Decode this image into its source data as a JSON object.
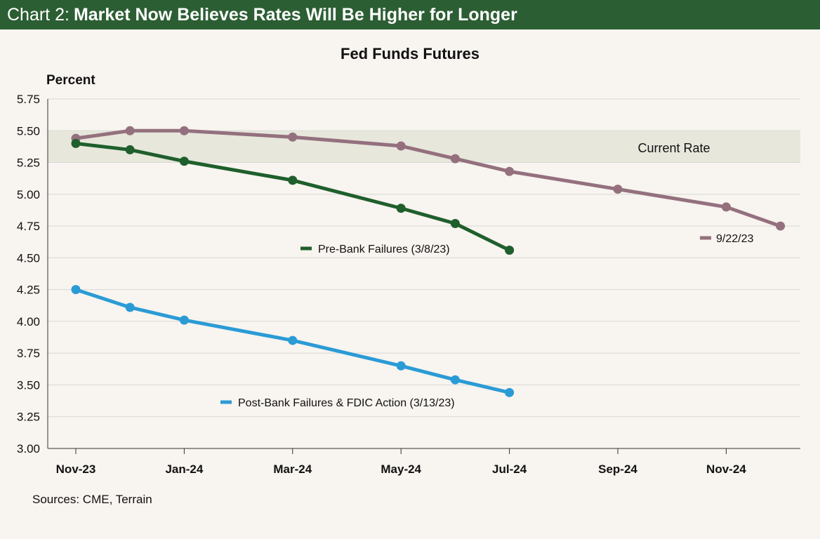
{
  "header": {
    "prefix": "Chart 2:",
    "title": "Market Now Believes Rates Will Be Higher for Longer"
  },
  "footer": {
    "source": "Sources: CME, Terrain"
  },
  "colors": {
    "header_bg": "#2c5e33",
    "pre": "#1f5f2c",
    "post": "#2b9bd6",
    "sep": "#94707e",
    "band": "#e7e7dc",
    "grid": "#d8d8d8",
    "background": "#f8f4ef"
  },
  "chart_data": {
    "type": "line",
    "title": "Fed Funds Futures",
    "ylabel": "Percent",
    "xlabel": "",
    "ylim": [
      3.0,
      5.75
    ],
    "yticks": [
      3.0,
      3.25,
      3.5,
      3.75,
      4.0,
      4.25,
      4.5,
      4.75,
      5.0,
      5.25,
      5.5,
      5.75
    ],
    "ytick_labels": [
      "3.00",
      "3.25",
      "3.50",
      "3.75",
      "4.00",
      "4.25",
      "4.50",
      "4.75",
      "5.00",
      "5.25",
      "5.50",
      "5.75"
    ],
    "xlim": [
      0,
      13.5
    ],
    "xticks": [
      0,
      2,
      4,
      6,
      8,
      10,
      12
    ],
    "xtick_labels": [
      "Nov-23",
      "Jan-24",
      "Mar-24",
      "May-24",
      "Jul-24",
      "Sep-24",
      "Nov-24"
    ],
    "grid": true,
    "band": {
      "label": "Current Rate",
      "from": 5.25,
      "to": 5.5
    },
    "series": [
      {
        "name": "9/22/23",
        "color": "#94707e",
        "x": [
          0,
          1,
          2,
          4,
          6,
          7,
          8,
          10,
          12,
          13
        ],
        "values": [
          5.44,
          5.5,
          5.5,
          5.45,
          5.38,
          5.28,
          5.18,
          5.04,
          4.9,
          4.75
        ]
      },
      {
        "name": "Pre-Bank Failures (3/8/23)",
        "color": "#1f5f2c",
        "x": [
          0,
          1,
          2,
          4,
          6,
          7,
          8
        ],
        "values": [
          5.4,
          5.35,
          5.26,
          5.11,
          4.89,
          4.77,
          4.56
        ]
      },
      {
        "name": "Post-Bank Failures & FDIC Action (3/13/23)",
        "color": "#2b9bd6",
        "x": [
          0,
          1,
          2,
          4,
          6,
          7,
          8
        ],
        "values": [
          4.25,
          4.11,
          4.01,
          3.85,
          3.65,
          3.54,
          3.44
        ]
      }
    ]
  }
}
